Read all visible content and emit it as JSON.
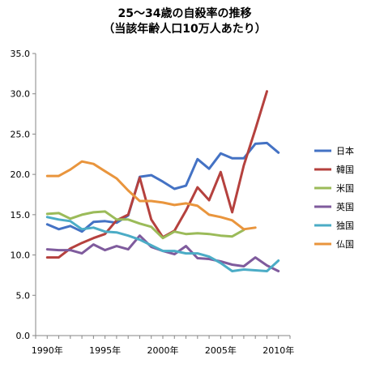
{
  "chart_data": {
    "type": "line",
    "title": "25～34歳の自殺率の推移",
    "subtitle": "（当該年齢人口10万人あたり）",
    "xlabel": "",
    "ylabel": "",
    "x_tick_labels": [
      "1990年",
      "1995年",
      "2000年",
      "2005年",
      "2010年"
    ],
    "x_ticks": [
      1990,
      1995,
      2000,
      2005,
      2010
    ],
    "xlim": [
      1989,
      2011
    ],
    "ylim": [
      0,
      35
    ],
    "y_ticks": [
      0,
      5,
      10,
      15,
      20,
      25,
      30,
      35
    ],
    "y_tick_labels": [
      "0.0",
      "5.0",
      "10.0",
      "15.0",
      "20.0",
      "25.0",
      "30.0",
      "35.0"
    ],
    "grid": false,
    "legend_position": "right",
    "series": [
      {
        "name": "日本",
        "color": "#4472c4",
        "x": [
          1990,
          1991,
          1992,
          1993,
          1994,
          1995,
          1996,
          1997,
          1998,
          1999,
          2000,
          2001,
          2002,
          2003,
          2004,
          2005,
          2006,
          2007,
          2008,
          2009,
          2010
        ],
        "y": [
          13.8,
          13.2,
          13.6,
          12.9,
          14.1,
          14.2,
          14.0,
          14.9,
          19.7,
          19.9,
          19.1,
          18.2,
          18.6,
          21.9,
          20.7,
          22.6,
          22.0,
          22.0,
          23.8,
          23.9,
          22.7
        ]
      },
      {
        "name": "韓国",
        "color": "#b5413e",
        "x": [
          1990,
          1991,
          1992,
          1993,
          1994,
          1995,
          1996,
          1997,
          1998,
          1999,
          2000,
          2001,
          2002,
          2003,
          2004,
          2005,
          2006,
          2007,
          2008,
          2009
        ],
        "y": [
          9.7,
          9.7,
          10.8,
          11.5,
          12.1,
          12.6,
          14.3,
          15.0,
          19.6,
          14.4,
          12.2,
          13.0,
          15.5,
          18.4,
          16.8,
          20.3,
          15.3,
          21.1,
          25.6,
          30.3
        ]
      },
      {
        "name": "米国",
        "color": "#9bbb59",
        "x": [
          1990,
          1991,
          1992,
          1993,
          1994,
          1995,
          1996,
          1997,
          1998,
          1999,
          2000,
          2001,
          2002,
          2003,
          2004,
          2005,
          2006,
          2007
        ],
        "y": [
          15.1,
          15.2,
          14.5,
          15.0,
          15.3,
          15.4,
          14.4,
          14.4,
          13.9,
          13.5,
          12.1,
          12.9,
          12.6,
          12.7,
          12.6,
          12.4,
          12.3,
          13.1
        ]
      },
      {
        "name": "英国",
        "color": "#7f5b9d",
        "x": [
          1990,
          1991,
          1992,
          1993,
          1994,
          1995,
          1996,
          1997,
          1998,
          1999,
          2000,
          2001,
          2002,
          2003,
          2004,
          2005,
          2006,
          2007,
          2008,
          2009,
          2010
        ],
        "y": [
          10.7,
          10.6,
          10.6,
          10.2,
          11.3,
          10.6,
          11.1,
          10.7,
          12.4,
          11.0,
          10.5,
          10.1,
          11.1,
          9.6,
          9.5,
          9.2,
          8.8,
          8.6,
          9.7,
          8.7,
          8.0
        ]
      },
      {
        "name": "独国",
        "color": "#4bacc6",
        "x": [
          1990,
          1991,
          1992,
          1993,
          1994,
          1995,
          1996,
          1997,
          1998,
          1999,
          2000,
          2001,
          2002,
          2003,
          2004,
          2005,
          2006,
          2007,
          2008,
          2009,
          2010
        ],
        "y": [
          14.7,
          14.4,
          14.2,
          13.2,
          13.4,
          12.9,
          12.8,
          12.4,
          11.9,
          11.2,
          10.5,
          10.5,
          10.2,
          10.2,
          9.8,
          9.0,
          8.0,
          8.2,
          8.1,
          8.0,
          9.3
        ]
      },
      {
        "name": "仏国",
        "color": "#e9953d",
        "x": [
          1990,
          1991,
          1992,
          1993,
          1994,
          1995,
          1996,
          1997,
          1998,
          1999,
          2000,
          2001,
          2002,
          2003,
          2004,
          2005,
          2006,
          2007,
          2008
        ],
        "y": [
          19.8,
          19.8,
          20.6,
          21.6,
          21.3,
          20.4,
          19.5,
          18.0,
          16.7,
          16.7,
          16.5,
          16.2,
          16.4,
          16.1,
          15.0,
          14.7,
          14.3,
          13.2,
          13.4
        ]
      }
    ]
  }
}
